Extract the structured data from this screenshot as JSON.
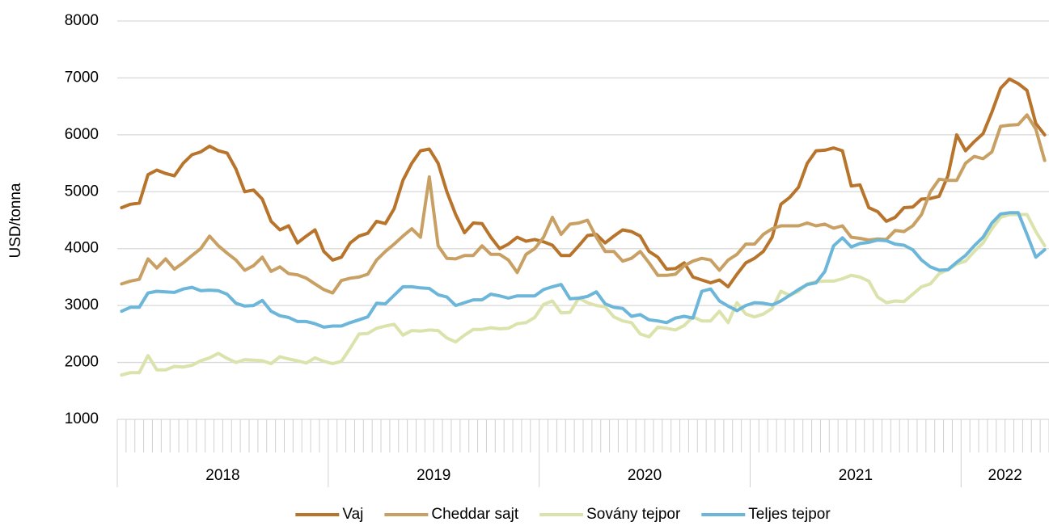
{
  "chart_data": {
    "type": "line",
    "y_label": "USD/tonna",
    "ylim": [
      1000,
      8000
    ],
    "yticks": [
      1000,
      2000,
      3000,
      4000,
      5000,
      6000,
      7000,
      8000
    ],
    "grid": true,
    "legend": "bottom",
    "categories": [
      "2018",
      null,
      null,
      null,
      null,
      null,
      null,
      null,
      null,
      null,
      null,
      null,
      null,
      null,
      null,
      null,
      null,
      null,
      null,
      null,
      null,
      null,
      null,
      null,
      "2019",
      null,
      null,
      null,
      null,
      null,
      null,
      null,
      null,
      null,
      null,
      null,
      null,
      null,
      null,
      null,
      null,
      null,
      null,
      null,
      null,
      null,
      null,
      null,
      "2020",
      null,
      null,
      null,
      null,
      null,
      null,
      null,
      null,
      null,
      null,
      null,
      null,
      null,
      null,
      null,
      null,
      null,
      null,
      null,
      null,
      null,
      null,
      null,
      "2021",
      null,
      null,
      null,
      null,
      null,
      null,
      null,
      null,
      null,
      null,
      null,
      null,
      null,
      null,
      null,
      null,
      null,
      null,
      null,
      null,
      null,
      null,
      null,
      "2022",
      null,
      null,
      null,
      null,
      null,
      null,
      null,
      null,
      null
    ],
    "series": [
      {
        "name": "Vaj",
        "color": "#b8742b",
        "values": [
          4720,
          4780,
          4800,
          5300,
          5380,
          5320,
          5280,
          5500,
          5650,
          5700,
          5800,
          5720,
          5680,
          5400,
          5000,
          5030,
          4870,
          4480,
          4330,
          4400,
          4100,
          4220,
          4330,
          3950,
          3800,
          3850,
          4100,
          4220,
          4270,
          4480,
          4440,
          4700,
          5200,
          5500,
          5720,
          5750,
          5500,
          5000,
          4600,
          4280,
          4450,
          4440,
          4200,
          4000,
          4080,
          4200,
          4130,
          4160,
          4120,
          4060,
          3880,
          3880,
          4050,
          4230,
          4250,
          4100,
          4220,
          4330,
          4300,
          4220,
          3950,
          3850,
          3640,
          3650,
          3750,
          3500,
          3450,
          3400,
          3450,
          3330,
          3550,
          3750,
          3830,
          3950,
          4200,
          4780,
          4900,
          5080,
          5500,
          5720,
          5730,
          5770,
          5720,
          5100,
          5120,
          4720,
          4650,
          4480,
          4550,
          4720,
          4730,
          4870,
          4880,
          4920,
          5280,
          6000,
          5720,
          5880,
          6020,
          6400,
          6820,
          6980,
          6900,
          6780,
          6200,
          6000
        ]
      },
      {
        "name": "Cheddar sajt",
        "color": "#c9a063",
        "values": [
          3380,
          3430,
          3460,
          3820,
          3660,
          3820,
          3640,
          3750,
          3880,
          4000,
          4220,
          4050,
          3920,
          3800,
          3620,
          3700,
          3850,
          3600,
          3680,
          3560,
          3540,
          3480,
          3380,
          3280,
          3220,
          3440,
          3480,
          3500,
          3550,
          3800,
          3950,
          4080,
          4220,
          4350,
          4200,
          5260,
          4050,
          3830,
          3820,
          3880,
          3880,
          4050,
          3900,
          3900,
          3800,
          3580,
          3900,
          4000,
          4200,
          4550,
          4250,
          4430,
          4450,
          4500,
          4200,
          3950,
          3950,
          3780,
          3830,
          3950,
          3750,
          3530,
          3530,
          3550,
          3700,
          3780,
          3830,
          3800,
          3620,
          3800,
          3900,
          4080,
          4080,
          4250,
          4350,
          4400,
          4400,
          4400,
          4450,
          4400,
          4430,
          4360,
          4400,
          4200,
          4180,
          4150,
          4170,
          4160,
          4320,
          4300,
          4400,
          4600,
          5000,
          5220,
          5200,
          5200,
          5500,
          5620,
          5580,
          5700,
          6150,
          6170,
          6180,
          6350,
          6100,
          5550
        ]
      },
      {
        "name": "Sovány tejpor",
        "color": "#dbe2ac",
        "values": [
          1780,
          1820,
          1820,
          2120,
          1870,
          1870,
          1930,
          1920,
          1950,
          2030,
          2080,
          2160,
          2070,
          2000,
          2050,
          2040,
          2030,
          1980,
          2100,
          2060,
          2030,
          1990,
          2080,
          2020,
          1980,
          2020,
          2250,
          2500,
          2510,
          2600,
          2640,
          2670,
          2480,
          2560,
          2550,
          2570,
          2560,
          2430,
          2360,
          2480,
          2580,
          2580,
          2610,
          2590,
          2600,
          2680,
          2700,
          2790,
          3020,
          3080,
          2870,
          2880,
          3130,
          3050,
          3000,
          2980,
          2800,
          2730,
          2700,
          2500,
          2450,
          2620,
          2600,
          2570,
          2650,
          2800,
          2730,
          2730,
          2900,
          2700,
          3050,
          2850,
          2800,
          2850,
          2950,
          3250,
          3180,
          3250,
          3380,
          3420,
          3430,
          3430,
          3470,
          3530,
          3500,
          3430,
          3150,
          3050,
          3080,
          3070,
          3200,
          3330,
          3380,
          3560,
          3630,
          3730,
          3780,
          3950,
          4100,
          4350,
          4550,
          4600,
          4600,
          4600,
          4300,
          4050
        ]
      },
      {
        "name": "Teljes tejpor",
        "color": "#6cb6da",
        "values": [
          2900,
          2970,
          2970,
          3220,
          3250,
          3240,
          3230,
          3290,
          3320,
          3260,
          3270,
          3260,
          3200,
          3040,
          2990,
          3000,
          3090,
          2900,
          2820,
          2790,
          2720,
          2720,
          2680,
          2620,
          2640,
          2640,
          2700,
          2750,
          2800,
          3040,
          3030,
          3180,
          3330,
          3330,
          3310,
          3300,
          3190,
          3150,
          3000,
          3050,
          3100,
          3100,
          3200,
          3170,
          3130,
          3170,
          3170,
          3170,
          3280,
          3330,
          3370,
          3120,
          3130,
          3160,
          3240,
          3030,
          2970,
          2950,
          2810,
          2840,
          2750,
          2730,
          2700,
          2780,
          2810,
          2780,
          3250,
          3290,
          3080,
          2990,
          2910,
          3000,
          3050,
          3040,
          3010,
          3080,
          3180,
          3280,
          3370,
          3400,
          3600,
          4050,
          4190,
          4030,
          4090,
          4110,
          4150,
          4140,
          4080,
          4060,
          3980,
          3800,
          3680,
          3620,
          3630,
          3760,
          3880,
          4050,
          4200,
          4450,
          4610,
          4630,
          4630,
          4250,
          3850,
          3980
        ]
      }
    ]
  }
}
